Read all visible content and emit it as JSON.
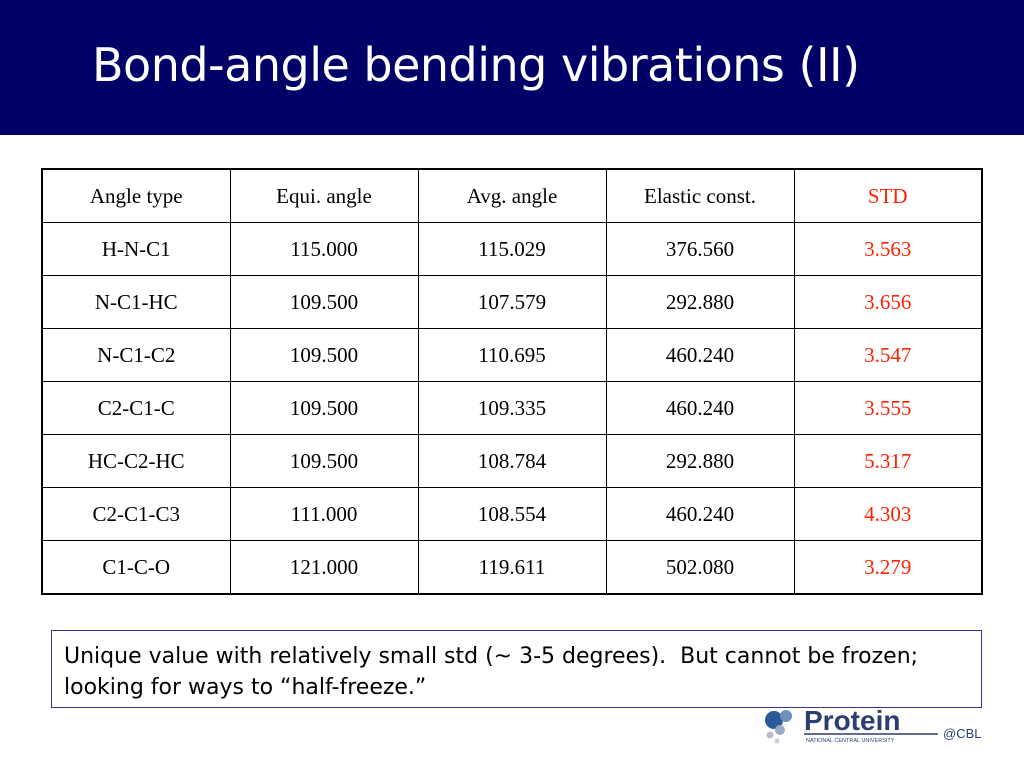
{
  "slide": {
    "title": "Bond-angle bending vibrations (II)"
  },
  "table": {
    "headers": [
      "Angle type",
      "Equi. angle",
      "Avg. angle",
      "Elastic const.",
      "STD"
    ],
    "rows": [
      [
        "H-N-C1",
        "115.000",
        "115.029",
        "376.560",
        "3.563"
      ],
      [
        "N-C1-HC",
        "109.500",
        "107.579",
        "292.880",
        "3.656"
      ],
      [
        "N-C1-C2",
        "109.500",
        "110.695",
        "460.240",
        "3.547"
      ],
      [
        "C2-C1-C",
        "109.500",
        "109.335",
        "460.240",
        "3.555"
      ],
      [
        "HC-C2-HC",
        "109.500",
        "108.784",
        "292.880",
        "5.317"
      ],
      [
        "C2-C1-C3",
        "111.000",
        "108.554",
        "460.240",
        "4.303"
      ],
      [
        "C1-C-O",
        "121.000",
        "119.611",
        "502.080",
        "3.279"
      ]
    ]
  },
  "note": {
    "text": "Unique value with relatively small std (~ 3-5 degrees).  But cannot be frozen; looking for ways to “half-freeze.”"
  },
  "logo": {
    "name": "Protein",
    "suffix": "@CBL",
    "subtitle": "NATIONAL CENTRAL UNIVERSITY"
  },
  "colors": {
    "title_bar": "#000066",
    "std_text": "#ff2200",
    "note_border": "#333399"
  }
}
